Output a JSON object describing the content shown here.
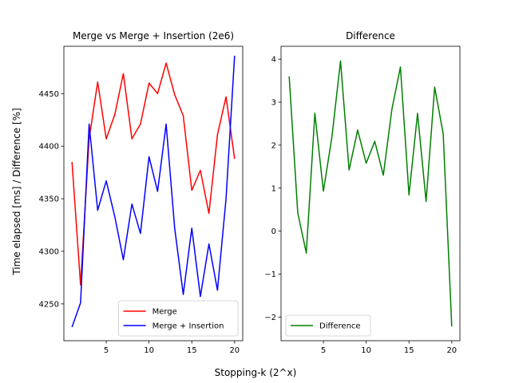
{
  "figure": {
    "xlabel": "Stopping-k (2^x)",
    "ylabel": "Time elapsed [ms] / Difference [%]"
  },
  "chart_data": [
    {
      "type": "line",
      "title": "Merge vs Merge + Insertion (2e6)",
      "xlim": [
        0.05,
        20.95
      ],
      "ylim": [
        4215,
        4495
      ],
      "xticks": [
        5,
        10,
        15,
        20
      ],
      "yticks": [
        4250,
        4300,
        4350,
        4400,
        4450
      ],
      "legend": "lower right",
      "x": [
        1,
        2,
        3,
        4,
        5,
        6,
        7,
        8,
        9,
        10,
        11,
        12,
        13,
        14,
        15,
        16,
        17,
        18,
        19,
        20
      ],
      "series": [
        {
          "name": "Merge",
          "color": "#ff0000",
          "values": [
            4385,
            4268,
            4407,
            4461,
            4407,
            4430,
            4469,
            4407,
            4421,
            4460,
            4450,
            4479,
            4449,
            4429,
            4358,
            4377,
            4336,
            4411,
            4447,
            4388
          ]
        },
        {
          "name": "Merge + Insertion",
          "color": "#0000ff",
          "values": [
            4228,
            4251,
            4421,
            4339,
            4367,
            4333,
            4292,
            4345,
            4317,
            4390,
            4357,
            4421,
            4322,
            4259,
            4322,
            4257,
            4307,
            4263,
            4350,
            4486
          ]
        }
      ]
    },
    {
      "type": "line",
      "title": "Difference",
      "xlim": [
        0.05,
        20.95
      ],
      "ylim": [
        -2.55,
        4.3
      ],
      "xticks": [
        5,
        10,
        15,
        20
      ],
      "yticks": [
        -2,
        -1,
        0,
        1,
        2,
        3,
        4
      ],
      "legend": "lower left",
      "x": [
        1,
        2,
        3,
        4,
        5,
        6,
        7,
        8,
        9,
        10,
        11,
        12,
        13,
        14,
        15,
        16,
        17,
        18,
        19,
        20
      ],
      "series": [
        {
          "name": "Difference",
          "color": "#008000",
          "values": [
            3.6,
            0.43,
            -0.51,
            2.74,
            0.93,
            2.2,
            3.96,
            1.42,
            2.35,
            1.58,
            2.09,
            1.3,
            2.83,
            3.82,
            0.84,
            2.74,
            0.69,
            3.35,
            2.26,
            -2.22
          ]
        }
      ]
    }
  ]
}
